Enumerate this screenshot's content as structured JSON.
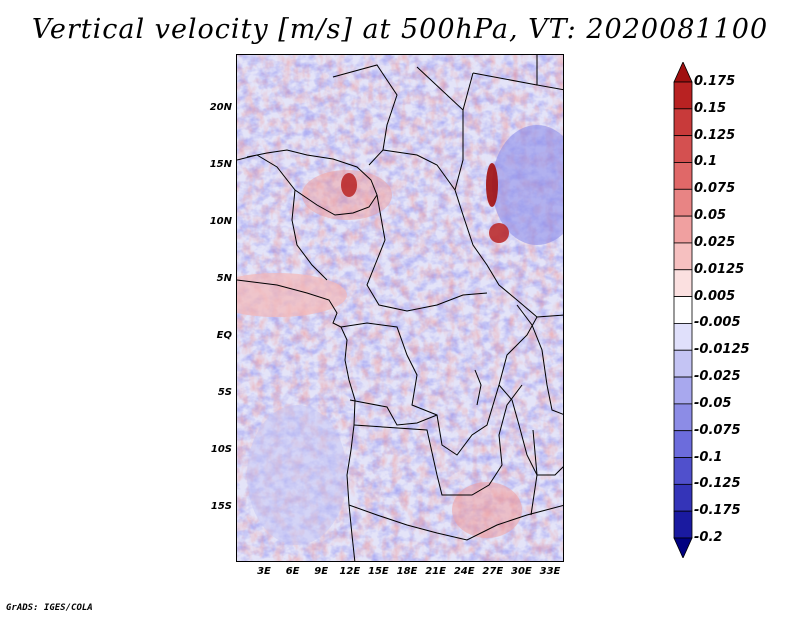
{
  "title": "Vertical velocity [m/s] at 500hPa, VT: 2020081100",
  "footer": "GrADS: IGES/COLA",
  "map": {
    "variable": "Vertical velocity",
    "units": "m/s",
    "level": "500hPa",
    "valid_time": "2020081100",
    "lat_labels": [
      "20N",
      "15N",
      "10N",
      "5N",
      "EQ",
      "5S",
      "10S",
      "15S"
    ],
    "lon_labels": [
      "3E",
      "6E",
      "9E",
      "12E",
      "15E",
      "18E",
      "21E",
      "24E",
      "27E",
      "30E",
      "33E"
    ]
  },
  "colorbar": {
    "labels": [
      "0.175",
      "0.15",
      "0.125",
      "0.1",
      "0.075",
      "0.05",
      "0.025",
      "0.0125",
      "0.005",
      "-0.005",
      "-0.0125",
      "-0.025",
      "-0.05",
      "-0.075",
      "-0.1",
      "-0.125",
      "-0.175",
      "-0.2"
    ],
    "colors": [
      "#a01010",
      "#b82222",
      "#c83a3a",
      "#d45050",
      "#e06868",
      "#e88484",
      "#f0a0a0",
      "#f6c0c0",
      "#fbe0e0",
      "#ffffff",
      "#e0e0fb",
      "#c4c4f4",
      "#a8a8ee",
      "#8c8ce6",
      "#6c6cdc",
      "#5050cc",
      "#3434b8",
      "#1a1aa0",
      "#000080"
    ]
  }
}
